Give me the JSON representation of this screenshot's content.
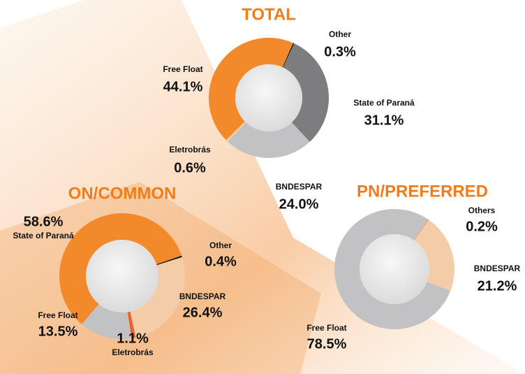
{
  "chart_data": [
    {
      "type": "pie",
      "title": "TOTAL",
      "categories": [
        "Other",
        "State of Paraná",
        "BNDESPAR",
        "Eletrobrás",
        "Free Float"
      ],
      "values": [
        0.3,
        31.1,
        24.0,
        0.6,
        44.1
      ],
      "value_labels": [
        "0.3%",
        "31.1%",
        "24.0%",
        "0.6%",
        "44.1%"
      ],
      "colors": [
        "#111111",
        "#7d7d7f",
        "#c2c2c4",
        "#f6c9a0",
        "#f28a2b"
      ]
    },
    {
      "type": "pie",
      "title": "ON/COMMON",
      "categories": [
        "Other",
        "BNDESPAR",
        "Eletrobrás",
        "Free Float",
        "State of Paraná"
      ],
      "values": [
        0.4,
        26.4,
        1.1,
        13.5,
        58.6
      ],
      "value_labels": [
        "0.4%",
        "26.4%",
        "1.1%",
        "13.5%",
        "58.6%"
      ],
      "colors": [
        "#111111",
        "#f3cda8",
        "#e8612a",
        "#c2c2c4",
        "#f28a2b"
      ]
    },
    {
      "type": "pie",
      "title": "PN/PREFERRED",
      "categories": [
        "Others",
        "BNDESPAR",
        "Free Float"
      ],
      "values": [
        0.2,
        21.2,
        78.5
      ],
      "value_labels": [
        "0.2%",
        "21.2%",
        "78.5%"
      ],
      "colors": [
        "#f28a2b",
        "#f3cda8",
        "#c2c2c4"
      ]
    }
  ]
}
